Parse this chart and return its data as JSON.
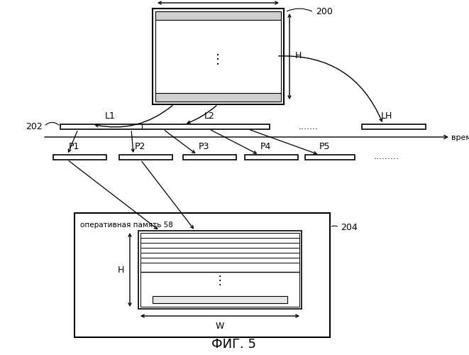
{
  "bg_color": "#ffffff",
  "line_color": "#000000",
  "title": "ФИГ. 5",
  "title_fontsize": 13,
  "fig_label_200": "200",
  "fig_label_202": "202",
  "fig_label_204": "204",
  "label_W": "W",
  "label_H": "H",
  "label_L1": "L1",
  "label_L2": "L2",
  "label_LH": "LH",
  "label_P1": "P1",
  "label_P2": "P2",
  "label_P3": "P3",
  "label_P4": "P4",
  "label_P5": "P5",
  "label_dots_l": ".......",
  "label_dots_p": ".........",
  "label_time": "время",
  "label_ram": "оперативная память 58"
}
